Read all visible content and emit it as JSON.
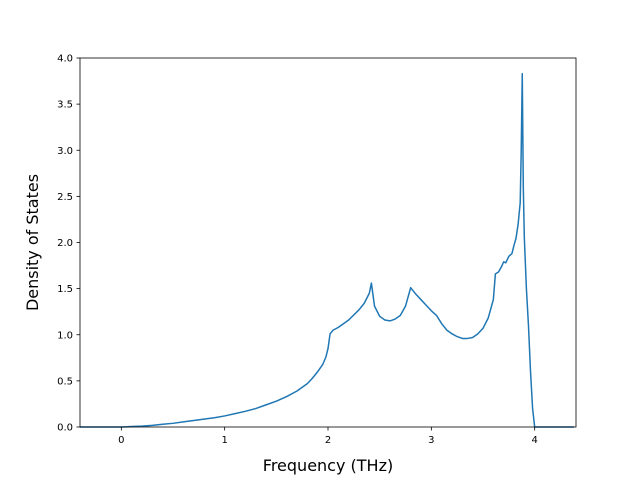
{
  "chart_data": {
    "type": "line",
    "title": "",
    "xlabel": "Frequency (THz)",
    "ylabel": "Density of States",
    "xlim": [
      -0.4,
      4.4
    ],
    "ylim": [
      0.0,
      4.0
    ],
    "xticks": [
      0,
      1,
      2,
      3,
      4
    ],
    "xtick_labels": [
      "0",
      "1",
      "2",
      "3",
      "4"
    ],
    "yticks": [
      0.0,
      0.5,
      1.0,
      1.5,
      2.0,
      2.5,
      3.0,
      3.5,
      4.0
    ],
    "ytick_labels": [
      "0.0",
      "0.5",
      "1.0",
      "1.5",
      "2.0",
      "2.5",
      "3.0",
      "3.5",
      "4.0"
    ],
    "grid": false,
    "line_color": "#1f77b4",
    "series": [
      {
        "x": [
          -0.4,
          -0.2,
          0.0,
          0.1,
          0.2,
          0.3,
          0.4,
          0.5,
          0.6,
          0.7,
          0.8,
          0.9,
          1.0,
          1.1,
          1.2,
          1.3,
          1.4,
          1.5,
          1.6,
          1.7,
          1.8,
          1.85,
          1.9,
          1.95,
          1.98,
          2.0,
          2.02,
          2.05,
          2.1,
          2.2,
          2.3,
          2.35,
          2.4,
          2.42,
          2.45,
          2.5,
          2.55,
          2.6,
          2.65,
          2.7,
          2.75,
          2.78,
          2.8,
          2.85,
          2.9,
          2.95,
          3.0,
          3.05,
          3.1,
          3.15,
          3.2,
          3.25,
          3.3,
          3.35,
          3.4,
          3.45,
          3.5,
          3.55,
          3.6,
          3.62,
          3.65,
          3.68,
          3.7,
          3.72,
          3.75,
          3.78,
          3.8,
          3.82,
          3.84,
          3.86,
          3.87,
          3.88,
          3.89,
          3.9,
          3.92,
          3.94,
          3.96,
          3.98,
          4.0,
          4.2,
          4.38
        ],
        "y": [
          0.0,
          0.0,
          0.0,
          0.005,
          0.01,
          0.018,
          0.03,
          0.04,
          0.055,
          0.07,
          0.085,
          0.1,
          0.12,
          0.145,
          0.17,
          0.2,
          0.24,
          0.28,
          0.33,
          0.39,
          0.47,
          0.53,
          0.6,
          0.68,
          0.76,
          0.85,
          1.01,
          1.05,
          1.08,
          1.16,
          1.27,
          1.34,
          1.45,
          1.56,
          1.31,
          1.2,
          1.16,
          1.15,
          1.17,
          1.21,
          1.31,
          1.43,
          1.51,
          1.44,
          1.38,
          1.32,
          1.26,
          1.21,
          1.12,
          1.05,
          1.01,
          0.98,
          0.96,
          0.96,
          0.97,
          1.01,
          1.07,
          1.18,
          1.38,
          1.66,
          1.68,
          1.74,
          1.79,
          1.78,
          1.85,
          1.88,
          1.97,
          2.05,
          2.2,
          2.43,
          3.0,
          3.83,
          2.6,
          2.05,
          1.5,
          1.1,
          0.6,
          0.2,
          0.0,
          0.0,
          0.0
        ]
      }
    ]
  }
}
